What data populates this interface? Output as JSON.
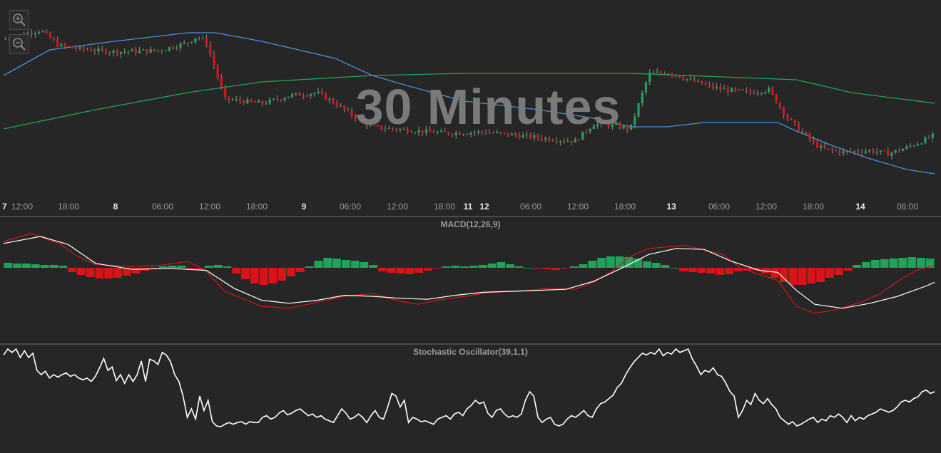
{
  "watermark": "30 Minutes",
  "toolbar": [
    {
      "name": "zoom-reset-icon"
    },
    {
      "name": "zoom-in-icon"
    }
  ],
  "colors": {
    "background": "#262626",
    "grid_divider": "#6e6e6e",
    "axis_text": "#9a9a9a",
    "bull_candle": "#1fa35a",
    "bear_candle": "#d7141a",
    "ma_fast": "#4a90d9",
    "ma_slow": "#22a355",
    "macd_line": "#ffffff",
    "signal_line": "#d7141a",
    "stoch_line": "#ffffff"
  },
  "chart_data": [
    {
      "type": "candlestick",
      "title": "",
      "x_ticks": [
        {
          "label": "7",
          "bold": true
        },
        {
          "label": "12:00",
          "bold": false
        },
        {
          "label": "18:00",
          "bold": false
        },
        {
          "label": "8",
          "bold": true
        },
        {
          "label": "06:00",
          "bold": false
        },
        {
          "label": "12:00",
          "bold": false
        },
        {
          "label": "18:00",
          "bold": false
        },
        {
          "label": "9",
          "bold": true
        },
        {
          "label": "06:00",
          "bold": false
        },
        {
          "label": "12:00",
          "bold": false
        },
        {
          "label": "18:00",
          "bold": false
        },
        {
          "label": "11",
          "bold": true
        },
        {
          "label": "12",
          "bold": true
        },
        {
          "label": "06:00",
          "bold": false
        },
        {
          "label": "12:00",
          "bold": false
        },
        {
          "label": "18:00",
          "bold": false
        },
        {
          "label": "13",
          "bold": true
        },
        {
          "label": "06:00",
          "bold": false
        },
        {
          "label": "12:00",
          "bold": false
        },
        {
          "label": "18:00",
          "bold": false
        },
        {
          "label": "14",
          "bold": true
        },
        {
          "label": "06:00",
          "bold": false
        }
      ],
      "price_path": [
        [
          0,
          0.84
        ],
        [
          4,
          0.9
        ],
        [
          6,
          0.8
        ],
        [
          8,
          0.78
        ],
        [
          12,
          0.76
        ],
        [
          17,
          0.77
        ],
        [
          20,
          0.82
        ],
        [
          21,
          0.86
        ],
        [
          22,
          0.82
        ],
        [
          24,
          0.46
        ],
        [
          28,
          0.43
        ],
        [
          31,
          0.48
        ],
        [
          34,
          0.5
        ],
        [
          36,
          0.43
        ],
        [
          38,
          0.35
        ],
        [
          40,
          0.28
        ],
        [
          44,
          0.26
        ],
        [
          48,
          0.24
        ],
        [
          52,
          0.25
        ],
        [
          57,
          0.22
        ],
        [
          60,
          0.2
        ],
        [
          62,
          0.19
        ],
        [
          64,
          0.3
        ],
        [
          66,
          0.29
        ],
        [
          68,
          0.27
        ],
        [
          70,
          0.62
        ],
        [
          72,
          0.63
        ],
        [
          76,
          0.55
        ],
        [
          78,
          0.52
        ],
        [
          81,
          0.5
        ],
        [
          83,
          0.52
        ],
        [
          85,
          0.34
        ],
        [
          88,
          0.17
        ],
        [
          89,
          0.14
        ],
        [
          91,
          0.12
        ],
        [
          94,
          0.13
        ],
        [
          96,
          0.11
        ],
        [
          98,
          0.15
        ],
        [
          100,
          0.2
        ],
        [
          101,
          0.23
        ]
      ],
      "moving_averages": [
        {
          "period": "fast",
          "path": [
            [
              0,
              0.58
            ],
            [
              5,
              0.7
            ],
            [
              12,
              0.74
            ],
            [
              20,
              0.78
            ],
            [
              23,
              0.78
            ],
            [
              28,
              0.74
            ],
            [
              36,
              0.66
            ],
            [
              40,
              0.58
            ],
            [
              44,
              0.53
            ],
            [
              50,
              0.46
            ],
            [
              58,
              0.42
            ],
            [
              64,
              0.38
            ],
            [
              68,
              0.34
            ],
            [
              72,
              0.34
            ],
            [
              76,
              0.36
            ],
            [
              80,
              0.36
            ],
            [
              84,
              0.36
            ],
            [
              86,
              0.32
            ],
            [
              90,
              0.25
            ],
            [
              94,
              0.19
            ],
            [
              98,
              0.14
            ],
            [
              101,
              0.12
            ]
          ]
        },
        {
          "period": "slow",
          "path": [
            [
              0,
              0.33
            ],
            [
              10,
              0.42
            ],
            [
              20,
              0.5
            ],
            [
              28,
              0.55
            ],
            [
              40,
              0.58
            ],
            [
              50,
              0.59
            ],
            [
              58,
              0.59
            ],
            [
              68,
              0.59
            ],
            [
              80,
              0.57
            ],
            [
              86,
              0.56
            ],
            [
              92,
              0.5
            ],
            [
              101,
              0.45
            ]
          ]
        }
      ]
    },
    {
      "type": "line",
      "title": "MACD(12,26,9)",
      "series": [
        {
          "name": "",
          "path": [
            [
              0,
              0.85
            ],
            [
              3,
              0.93
            ],
            [
              6,
              0.83
            ],
            [
              8,
              0.7
            ],
            [
              10,
              0.62
            ],
            [
              14,
              0.6
            ],
            [
              17,
              0.61
            ],
            [
              20,
              0.65
            ],
            [
              22,
              0.55
            ],
            [
              24,
              0.35
            ],
            [
              28,
              0.2
            ],
            [
              31,
              0.18
            ],
            [
              34,
              0.24
            ],
            [
              37,
              0.3
            ],
            [
              40,
              0.33
            ],
            [
              43,
              0.25
            ],
            [
              45,
              0.22
            ],
            [
              47,
              0.26
            ],
            [
              50,
              0.3
            ],
            [
              53,
              0.34
            ],
            [
              56,
              0.35
            ],
            [
              59,
              0.38
            ],
            [
              62,
              0.37
            ],
            [
              64,
              0.44
            ],
            [
              66,
              0.55
            ],
            [
              68,
              0.7
            ],
            [
              70,
              0.78
            ],
            [
              74,
              0.81
            ],
            [
              78,
              0.72
            ],
            [
              80,
              0.58
            ],
            [
              82,
              0.52
            ],
            [
              84,
              0.46
            ],
            [
              86,
              0.2
            ],
            [
              88,
              0.13
            ],
            [
              90,
              0.16
            ],
            [
              93,
              0.24
            ],
            [
              95,
              0.32
            ],
            [
              97,
              0.45
            ],
            [
              99,
              0.56
            ],
            [
              101,
              0.61
            ]
          ]
        },
        {
          "name": "",
          "path": [
            [
              0,
              0.83
            ],
            [
              4,
              0.9
            ],
            [
              7,
              0.82
            ],
            [
              10,
              0.63
            ],
            [
              14,
              0.57
            ],
            [
              18,
              0.58
            ],
            [
              22,
              0.56
            ],
            [
              25,
              0.38
            ],
            [
              28,
              0.26
            ],
            [
              31,
              0.23
            ],
            [
              34,
              0.26
            ],
            [
              37,
              0.31
            ],
            [
              40,
              0.3
            ],
            [
              43,
              0.28
            ],
            [
              46,
              0.27
            ],
            [
              49,
              0.31
            ],
            [
              52,
              0.34
            ],
            [
              55,
              0.35
            ],
            [
              58,
              0.36
            ],
            [
              61,
              0.37
            ],
            [
              64,
              0.45
            ],
            [
              67,
              0.58
            ],
            [
              70,
              0.72
            ],
            [
              73,
              0.78
            ],
            [
              76,
              0.77
            ],
            [
              79,
              0.65
            ],
            [
              82,
              0.56
            ],
            [
              84,
              0.54
            ],
            [
              86,
              0.36
            ],
            [
              88,
              0.22
            ],
            [
              91,
              0.18
            ],
            [
              94,
              0.23
            ],
            [
              97,
              0.3
            ],
            [
              100,
              0.4
            ],
            [
              101,
              0.44
            ]
          ]
        }
      ],
      "histogram": [
        0.07,
        0.06,
        0.06,
        0.05,
        0.04,
        0.04,
        0.03,
        -0.06,
        -0.1,
        -0.13,
        -0.15,
        -0.15,
        -0.14,
        -0.11,
        -0.08,
        -0.04,
        -0.02,
        0.02,
        0.03,
        0.03,
        -0.02,
        -0.03,
        0.03,
        0.04,
        0.02,
        -0.08,
        -0.16,
        -0.22,
        -0.24,
        -0.22,
        -0.18,
        -0.12,
        -0.06,
        0.02,
        0.1,
        0.14,
        0.13,
        0.11,
        0.1,
        0.08,
        0.04,
        -0.05,
        -0.07,
        -0.08,
        -0.09,
        -0.07,
        -0.04,
        -0.01,
        0.02,
        0.03,
        0.02,
        0.03,
        0.04,
        0.06,
        0.08,
        0.05,
        0.02,
        0.0,
        -0.01,
        -0.02,
        -0.03,
        -0.01,
        0.02,
        0.05,
        0.1,
        0.14,
        0.16,
        0.16,
        0.15,
        0.13,
        0.09,
        0.07,
        0.04,
        0.0,
        -0.05,
        -0.06,
        -0.07,
        -0.08,
        -0.1,
        -0.09,
        -0.05,
        -0.04,
        -0.04,
        -0.08,
        -0.14,
        -0.2,
        -0.24,
        -0.24,
        -0.22,
        -0.2,
        -0.14,
        -0.1,
        -0.04,
        0.04,
        0.08,
        0.11,
        0.12,
        0.13,
        0.14,
        0.15,
        0.14,
        0.13
      ]
    },
    {
      "type": "line",
      "title": "Stochastic Oscillator(39,1,1)",
      "ylim": [
        0,
        100
      ],
      "series": [
        {
          "name": "",
          "values": [
            93,
            100,
            96,
            100,
            90,
            98,
            90,
            95,
            75,
            70,
            74,
            66,
            70,
            67,
            70,
            72,
            68,
            70,
            66,
            64,
            66,
            62,
            68,
            78,
            89,
            75,
            79,
            63,
            70,
            60,
            70,
            62,
            70,
            86,
            62,
            88,
            86,
            82,
            96,
            93,
            85,
            70,
            62,
            45,
            20,
            30,
            18,
            45,
            28,
            40,
            15,
            10,
            9,
            12,
            14,
            12,
            14,
            15,
            12,
            15,
            14,
            14,
            20,
            22,
            18,
            20,
            25,
            28,
            23,
            25,
            28,
            30,
            26,
            22,
            24,
            20,
            22,
            18,
            16,
            14,
            22,
            30,
            25,
            18,
            20,
            24,
            20,
            14,
            22,
            28,
            20,
            18,
            32,
            48,
            45,
            32,
            40,
            14,
            20,
            18,
            15,
            16,
            14,
            12,
            18,
            20,
            22,
            18,
            24,
            26,
            22,
            30,
            34,
            40,
            36,
            38,
            25,
            20,
            28,
            30,
            24,
            20,
            22,
            20,
            24,
            40,
            50,
            45,
            20,
            14,
            18,
            20,
            12,
            10,
            12,
            18,
            22,
            20,
            24,
            28,
            22,
            20,
            30,
            36,
            38,
            42,
            46,
            55,
            60,
            70,
            78,
            85,
            90,
            95,
            93,
            96,
            94,
            100,
            92,
            96,
            94,
            100,
            96,
            98,
            100,
            88,
            80,
            70,
            75,
            73,
            78,
            70,
            68,
            60,
            50,
            45,
            20,
            28,
            40,
            35,
            48,
            40,
            36,
            42,
            35,
            30,
            20,
            16,
            12,
            15,
            10,
            12,
            15,
            18,
            20,
            14,
            18,
            16,
            22,
            20,
            24,
            20,
            14,
            22,
            16,
            20,
            18,
            22,
            24,
            26,
            30,
            28,
            26,
            28,
            32,
            38,
            40,
            38,
            42,
            44,
            50,
            52,
            48,
            50
          ],
          "x_range": [
            0,
            101
          ]
        }
      ]
    }
  ]
}
